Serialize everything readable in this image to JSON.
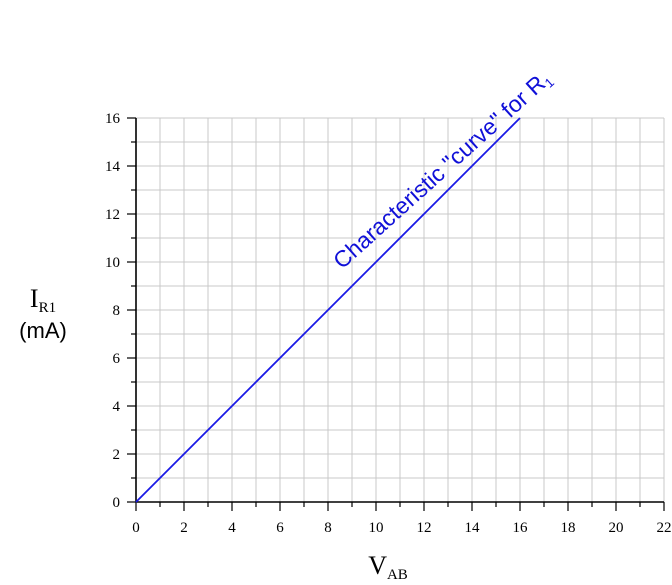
{
  "chart_data": {
    "type": "line",
    "x": [
      0,
      16
    ],
    "series": [
      {
        "values": [
          0,
          16
        ],
        "color": "#1a1ae6"
      }
    ],
    "xlim": [
      0,
      22
    ],
    "ylim": [
      0,
      16
    ],
    "x_ticks": [
      "0",
      "2",
      "4",
      "6",
      "8",
      "10",
      "12",
      "14",
      "16",
      "18",
      "20",
      "22"
    ],
    "y_ticks": [
      "0",
      "2",
      "4",
      "6",
      "8",
      "10",
      "12",
      "14",
      "16"
    ],
    "grid": true,
    "xlabel": {
      "main": "V",
      "sub": "AB"
    },
    "ylabel": {
      "main": "I",
      "sub": "R1",
      "unit": "(mA)"
    },
    "annotation": {
      "text": "Characteristic \"curve\" for R",
      "sub": "1"
    }
  }
}
